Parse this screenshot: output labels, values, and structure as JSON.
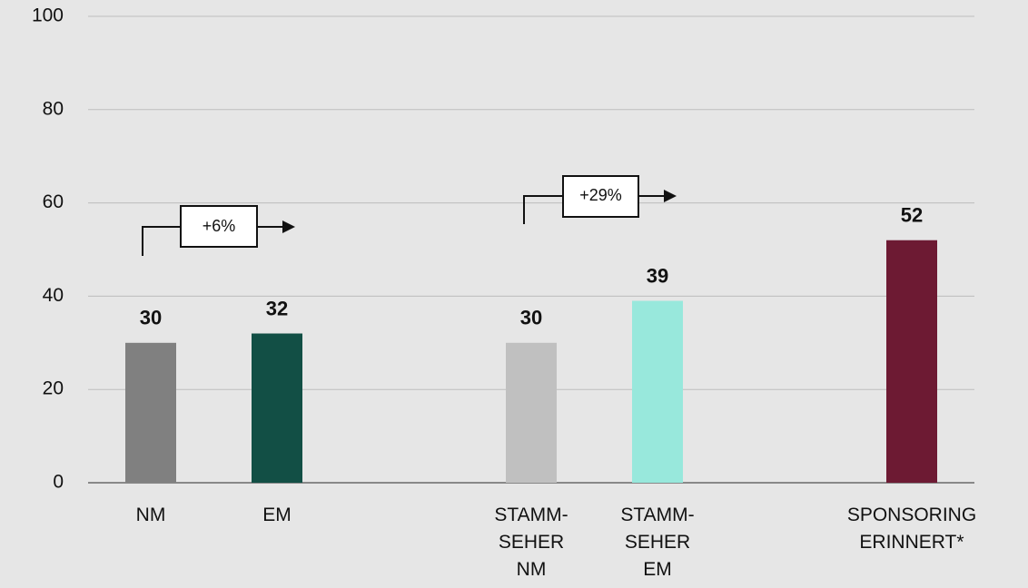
{
  "chart_data": {
    "type": "bar",
    "categories": [
      "NM",
      "EM",
      "STAMM-SEHER NM",
      "STAMM-SEHER EM",
      "SPONSORING ERINNERT*"
    ],
    "values": [
      30,
      32,
      30,
      39,
      52
    ],
    "colors": [
      "#808080",
      "#124f45",
      "#c0c0c0",
      "#98e8dc",
      "#6d1a33"
    ],
    "ylim": [
      0,
      100
    ],
    "yticks": [
      0,
      20,
      40,
      60,
      80,
      100
    ],
    "grid": true,
    "annotations": [
      {
        "text": "+6%"
      },
      {
        "text": "+29%"
      }
    ]
  }
}
